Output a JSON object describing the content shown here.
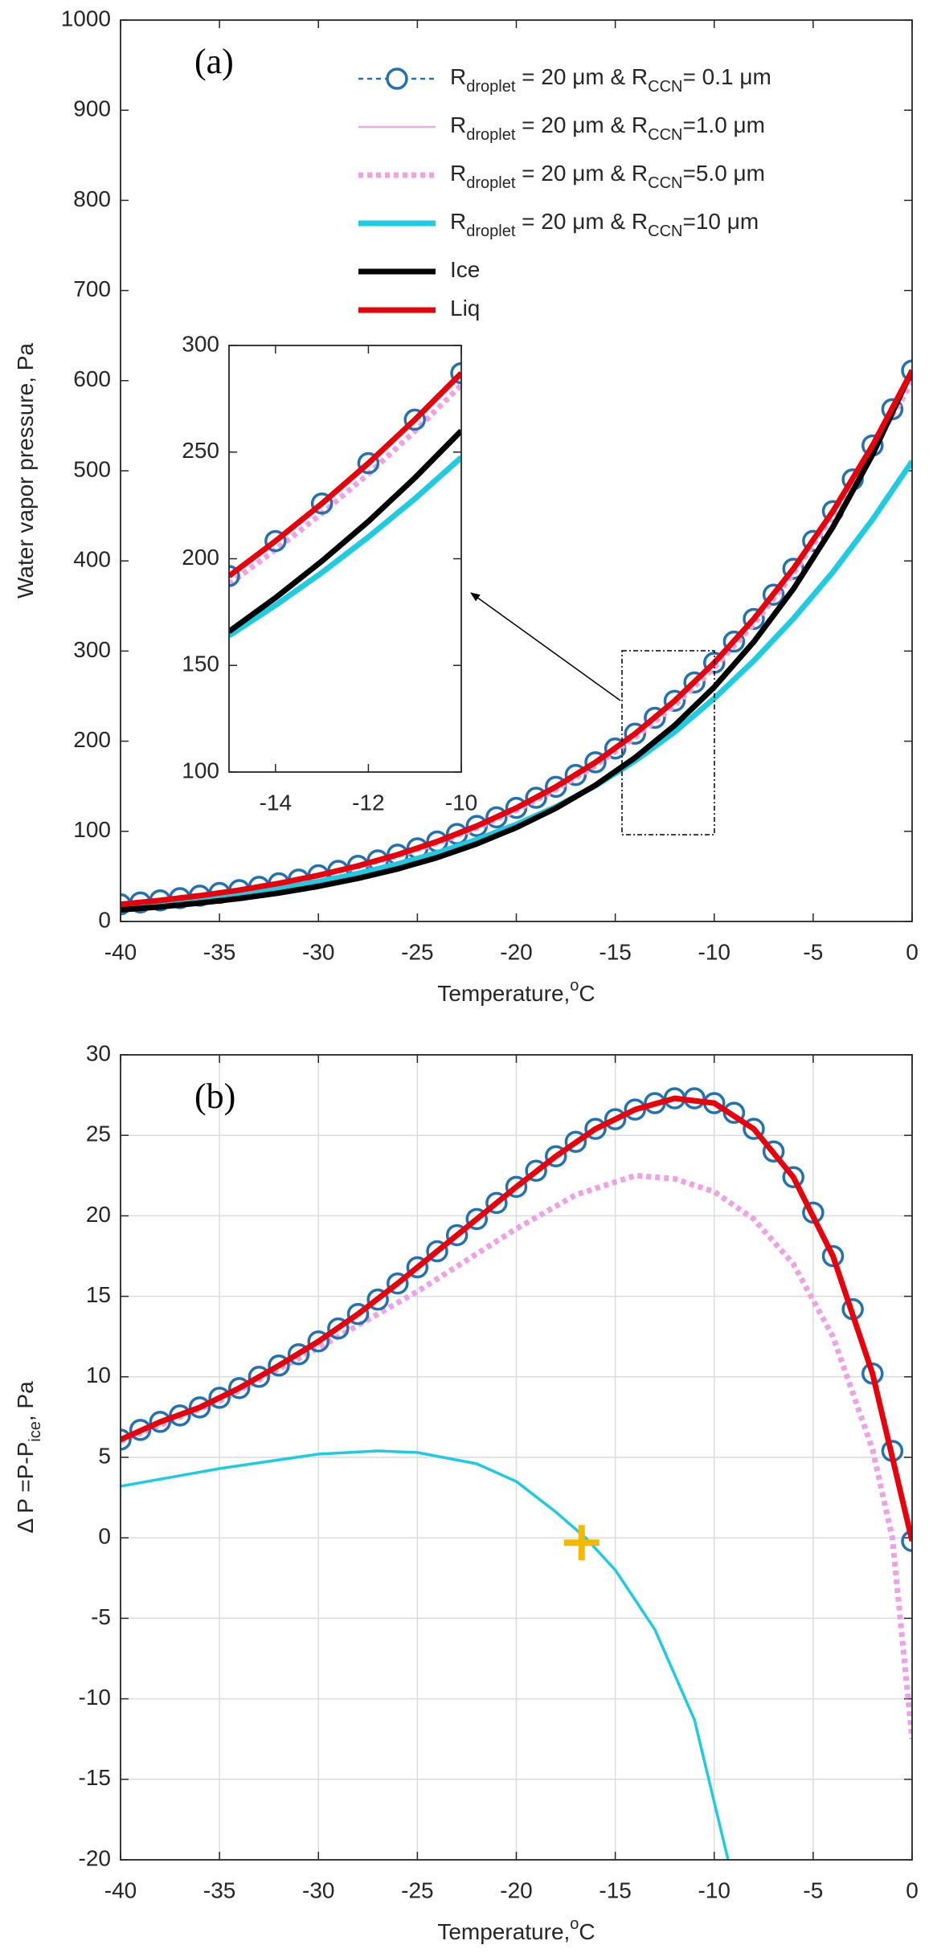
{
  "chart_data": [
    {
      "type": "line",
      "label": "(a)",
      "xlabel": [
        "Temperature,",
        "o",
        "C"
      ],
      "ylabel": [
        "Water vapor pressure, Pa"
      ],
      "xlim": [
        -40,
        0
      ],
      "ylim": [
        0,
        1000
      ],
      "xticks": [
        -40,
        -35,
        -30,
        -25,
        -20,
        -15,
        -10,
        -5,
        0
      ],
      "yticks": [
        0,
        100,
        200,
        300,
        400,
        500,
        600,
        700,
        800,
        900,
        1000
      ],
      "grid": false,
      "legend": "upper right",
      "series": [
        {
          "name": [
            "R",
            "droplet",
            " = 20 μm & R",
            "CCN",
            "= 0.1 μm"
          ],
          "color": "#2271b3",
          "style": "dotted",
          "weight": "thin",
          "marker": "o",
          "x": [
            -40,
            -39,
            -38,
            -37,
            -36,
            -35,
            -34,
            -33,
            -32,
            -31,
            -30,
            -29,
            -28,
            -27,
            -26,
            -25,
            -24,
            -23,
            -22,
            -21,
            -20,
            -19,
            -18,
            -17,
            -16,
            -15,
            -14,
            -13,
            -12,
            -11,
            -10,
            -9,
            -8,
            -7,
            -6,
            -5,
            -4,
            -3,
            -2,
            -1,
            0
          ],
          "values": [
            19.0,
            21.1,
            23.4,
            25.9,
            28.6,
            31.6,
            34.8,
            38.4,
            42.3,
            46.5,
            51.2,
            56.2,
            61.7,
            67.7,
            74.1,
            81.1,
            88.7,
            97.0,
            105.9,
            115.5,
            126.0,
            137.2,
            149.4,
            162.5,
            176.6,
            191.9,
            208.3,
            225.9,
            244.8,
            265.2,
            287.0,
            310.5,
            335.6,
            362.5,
            391.3,
            422.2,
            455.2,
            490.4,
            528.1,
            568.3,
            611.2
          ]
        },
        {
          "name": [
            "R",
            "droplet",
            " = 20 μm & R",
            "CCN",
            "=1.0 μm"
          ],
          "color": "#f4a6e0",
          "style": "solid",
          "weight": "thin",
          "x": [
            -40,
            -38,
            -36,
            -34,
            -32,
            -30,
            -28,
            -26,
            -24,
            -22,
            -20,
            -18,
            -16,
            -14,
            -12,
            -10,
            -8,
            -6,
            -4,
            -2,
            0
          ],
          "values": [
            19.0,
            23.4,
            28.6,
            34.8,
            42.3,
            51.2,
            61.7,
            74.1,
            88.7,
            105.9,
            126.0,
            149.4,
            176.6,
            208.3,
            244.8,
            287.0,
            335.6,
            391.3,
            455.2,
            528.1,
            611.2
          ]
        },
        {
          "name": [
            "R",
            "droplet",
            " = 20 μm & R",
            "CCN",
            "=5.0 μm"
          ],
          "color": "#f0a0e6",
          "style": "dotted",
          "weight": "thick",
          "x": [
            -40,
            -38,
            -36,
            -34,
            -32,
            -30,
            -28,
            -26,
            -24,
            -22,
            -20,
            -18,
            -16,
            -14,
            -12,
            -10,
            -8,
            -6,
            -4,
            -2,
            0
          ],
          "values": [
            18.9,
            23.2,
            28.4,
            34.5,
            41.9,
            50.8,
            61.0,
            72.9,
            87.0,
            103.7,
            123.4,
            146.3,
            172.9,
            204.2,
            239.8,
            281.5,
            330.0,
            385.9,
            450.2,
            523.4,
            598.9
          ]
        },
        {
          "name": [
            "R",
            "droplet",
            " = 20 μm & R",
            "CCN",
            "=10 μm"
          ],
          "color": "#1ecbe1",
          "style": "solid",
          "weight": "thick",
          "x": [
            -40,
            -38,
            -36,
            -34,
            -32,
            -30,
            -28,
            -26,
            -24,
            -22,
            -20,
            -18,
            -16,
            -14,
            -12,
            -10,
            -8,
            -6,
            -4,
            -2,
            0
          ],
          "values": [
            16.1,
            19.9,
            24.6,
            30.0,
            36.5,
            44.2,
            53.2,
            63.7,
            76.0,
            90.7,
            107.7,
            127.3,
            150.6,
            178.2,
            210.2,
            247.5,
            289.2,
            335.9,
            387.7,
            445.9,
            510.4
          ]
        },
        {
          "name": [
            "Ice"
          ],
          "color": "#000000",
          "style": "solid",
          "weight": "thick",
          "x": [
            -40,
            -38,
            -36,
            -34,
            -32,
            -30,
            -28,
            -26,
            -24,
            -22,
            -20,
            -18,
            -16,
            -14,
            -12,
            -10,
            -8,
            -6,
            -4,
            -2,
            0
          ],
          "values": [
            12.9,
            16.2,
            20.5,
            25.5,
            31.6,
            39.0,
            47.8,
            58.3,
            70.9,
            86.1,
            104.2,
            125.7,
            151.2,
            181.7,
            217.5,
            260.0,
            310.2,
            368.9,
            437.7,
            517.9,
            611.4
          ]
        },
        {
          "name": [
            "Liq"
          ],
          "color": "#e8000b",
          "style": "solid",
          "weight": "thick",
          "x": [
            -40,
            -38,
            -36,
            -34,
            -32,
            -30,
            -28,
            -26,
            -24,
            -22,
            -20,
            -18,
            -16,
            -14,
            -12,
            -10,
            -8,
            -6,
            -4,
            -2,
            0
          ],
          "values": [
            19.0,
            23.4,
            28.6,
            34.8,
            42.3,
            51.2,
            61.7,
            74.1,
            88.7,
            105.9,
            126.0,
            149.4,
            176.6,
            208.3,
            244.8,
            287.0,
            335.6,
            391.3,
            455.2,
            528.1,
            611.2
          ]
        }
      ]
    },
    {
      "type": "line",
      "xlim": [
        -15,
        -10
      ],
      "ylim": [
        100,
        300
      ],
      "xticks": [
        -14,
        -12,
        -10
      ],
      "yticks": [
        100,
        150,
        200,
        250,
        300
      ],
      "grid": false,
      "series": [
        {
          "color": "#f0a0e6",
          "style": "dotted",
          "weight": "thick",
          "x": [
            -15,
            -14,
            -13,
            -12,
            -11,
            -10
          ],
          "values": [
            188.1,
            204.2,
            221.3,
            239.8,
            259.8,
            281.5
          ]
        },
        {
          "color": "#1ecbe1",
          "style": "solid",
          "weight": "thick",
          "x": [
            -15,
            -14,
            -13,
            -12,
            -11,
            -10
          ],
          "values": [
            163.9,
            178.2,
            193.5,
            210.2,
            228.1,
            247.5
          ]
        },
        {
          "color": "#000000",
          "style": "solid",
          "weight": "thick",
          "x": [
            -15,
            -14,
            -13,
            -12,
            -11,
            -10
          ],
          "values": [
            165.9,
            181.7,
            198.9,
            217.5,
            237.9,
            260.0
          ]
        },
        {
          "color": "#f4a6e0",
          "style": "solid",
          "weight": "thin",
          "x": [
            -15,
            -14,
            -13,
            -12,
            -11,
            -10
          ],
          "values": [
            191.9,
            208.3,
            225.9,
            244.8,
            265.2,
            287.0
          ]
        },
        {
          "color": "#2271b3",
          "style": "none",
          "weight": "thin",
          "marker": "o",
          "x": [
            -15,
            -14,
            -13,
            -12,
            -11,
            -10
          ],
          "values": [
            191.9,
            208.3,
            225.9,
            244.8,
            265.2,
            287.0
          ]
        },
        {
          "color": "#e8000b",
          "style": "solid",
          "weight": "thick",
          "x": [
            -15,
            -14,
            -13,
            -12,
            -11,
            -10
          ],
          "values": [
            191.9,
            208.3,
            225.9,
            244.8,
            265.2,
            287.0
          ]
        }
      ]
    },
    {
      "type": "line",
      "label": "(b)",
      "xlabel": [
        "Temperature,",
        "o",
        "C"
      ],
      "ylabel": [
        "Δ P =P-P",
        "ice",
        ", Pa"
      ],
      "xlim": [
        -40,
        0
      ],
      "ylim": [
        -20,
        30
      ],
      "xticks": [
        -40,
        -35,
        -30,
        -25,
        -20,
        -15,
        -10,
        -5,
        0
      ],
      "yticks": [
        -20,
        -15,
        -10,
        -5,
        0,
        5,
        10,
        15,
        20,
        25,
        30
      ],
      "grid": true,
      "series": [
        {
          "color": "#1ecbe1",
          "style": "solid",
          "weight": "medium",
          "x": [
            -40,
            -35,
            -30,
            -27,
            -25,
            -22,
            -20,
            -18,
            -16.5,
            -15,
            -13,
            -11,
            -9.3
          ],
          "values": [
            3.2,
            4.3,
            5.2,
            5.4,
            5.3,
            4.6,
            3.5,
            1.6,
            0,
            -2.0,
            -5.7,
            -11.3,
            -20
          ]
        },
        {
          "color": "#f0a0e6",
          "style": "dotted",
          "weight": "thick",
          "x": [
            -40,
            -35,
            -30,
            -25,
            -20,
            -17,
            -14,
            -12,
            -10,
            -8,
            -6,
            -4,
            -2,
            -1,
            0
          ],
          "values": [
            6.0,
            8.5,
            11.8,
            15.3,
            19.2,
            21.3,
            22.5,
            22.3,
            21.5,
            19.8,
            17.0,
            12.5,
            5.5,
            0,
            -12.5
          ]
        },
        {
          "color": "#2271b3",
          "style": "none",
          "weight": "thin",
          "marker": "o",
          "x": [
            -40,
            -39,
            -38,
            -37,
            -36,
            -35,
            -34,
            -33,
            -32,
            -31,
            -30,
            -29,
            -28,
            -27,
            -26,
            -25,
            -24,
            -23,
            -22,
            -21,
            -20,
            -19,
            -18,
            -17,
            -16,
            -15,
            -14,
            -13,
            -12,
            -11,
            -10,
            -9,
            -8,
            -7,
            -6,
            -5,
            -4,
            -3,
            -2,
            -1,
            0
          ],
          "values": [
            6.1,
            6.7,
            7.2,
            7.6,
            8.1,
            8.7,
            9.3,
            10.0,
            10.7,
            11.4,
            12.2,
            13.0,
            13.9,
            14.8,
            15.8,
            16.8,
            17.8,
            18.8,
            19.8,
            20.8,
            21.8,
            22.8,
            23.7,
            24.6,
            25.4,
            26.0,
            26.6,
            27.0,
            27.3,
            27.3,
            27.0,
            26.4,
            25.4,
            24.0,
            22.4,
            20.2,
            17.5,
            14.2,
            10.2,
            5.4,
            -0.2
          ]
        },
        {
          "color": "#e8000b",
          "style": "solid",
          "weight": "thick",
          "x": [
            -40,
            -38,
            -36,
            -34,
            -32,
            -30,
            -28,
            -26,
            -24,
            -22,
            -20,
            -18,
            -16,
            -14,
            -12,
            -10,
            -8,
            -6,
            -4,
            -2,
            0
          ],
          "values": [
            6.1,
            7.2,
            8.1,
            9.3,
            10.7,
            12.2,
            13.9,
            15.8,
            17.8,
            19.8,
            21.8,
            23.7,
            25.4,
            26.6,
            27.3,
            27.0,
            25.4,
            22.4,
            17.5,
            10.2,
            -0.2
          ]
        }
      ],
      "point": {
        "x": -16.7,
        "y": -0.3,
        "color": "#f5b800"
      }
    }
  ]
}
